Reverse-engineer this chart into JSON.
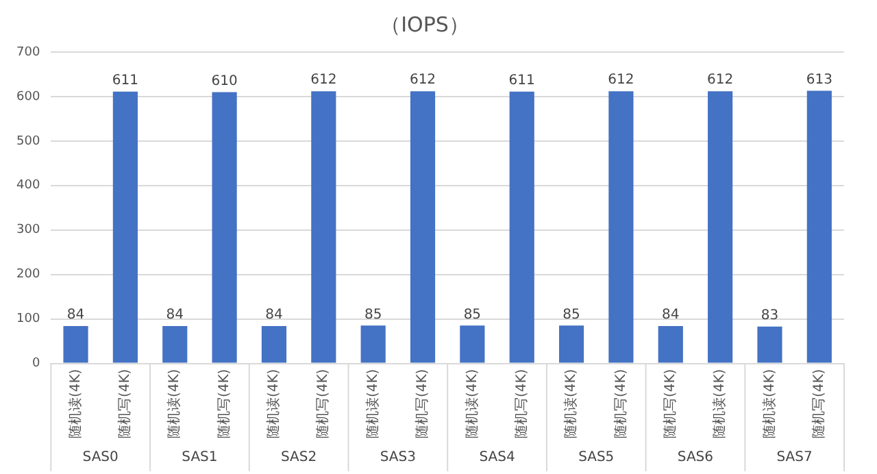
{
  "chart_data": {
    "type": "bar",
    "title": "（IOPS）",
    "categories": [
      "随机读(4K)",
      "随机写(4K)",
      "随机读(4K)",
      "随机写(4K)",
      "随机读(4K)",
      "随机写(4K)",
      "随机读(4K)",
      "随机写(4K)",
      "随机读(4K)",
      "随机写(4K)",
      "随机读(4K)",
      "随机写(4K)",
      "随机写(4K)",
      "随机读(4K)",
      "随机读(4K)",
      "随机写(4K)"
    ],
    "values": [
      84,
      611,
      84,
      610,
      84,
      612,
      85,
      612,
      85,
      611,
      85,
      612,
      84,
      612,
      83,
      613
    ],
    "color": "#4472c4",
    "ylim": [
      0,
      700
    ],
    "yticks": [
      0,
      100,
      200,
      300,
      400,
      500,
      600,
      700
    ],
    "grid": "y",
    "data_labels": true,
    "annotations": [
      "SAS0",
      "SAS1",
      "SAS2",
      "SAS3",
      "SAS4",
      "SAS5",
      "SAS6",
      "SAS7"
    ]
  }
}
